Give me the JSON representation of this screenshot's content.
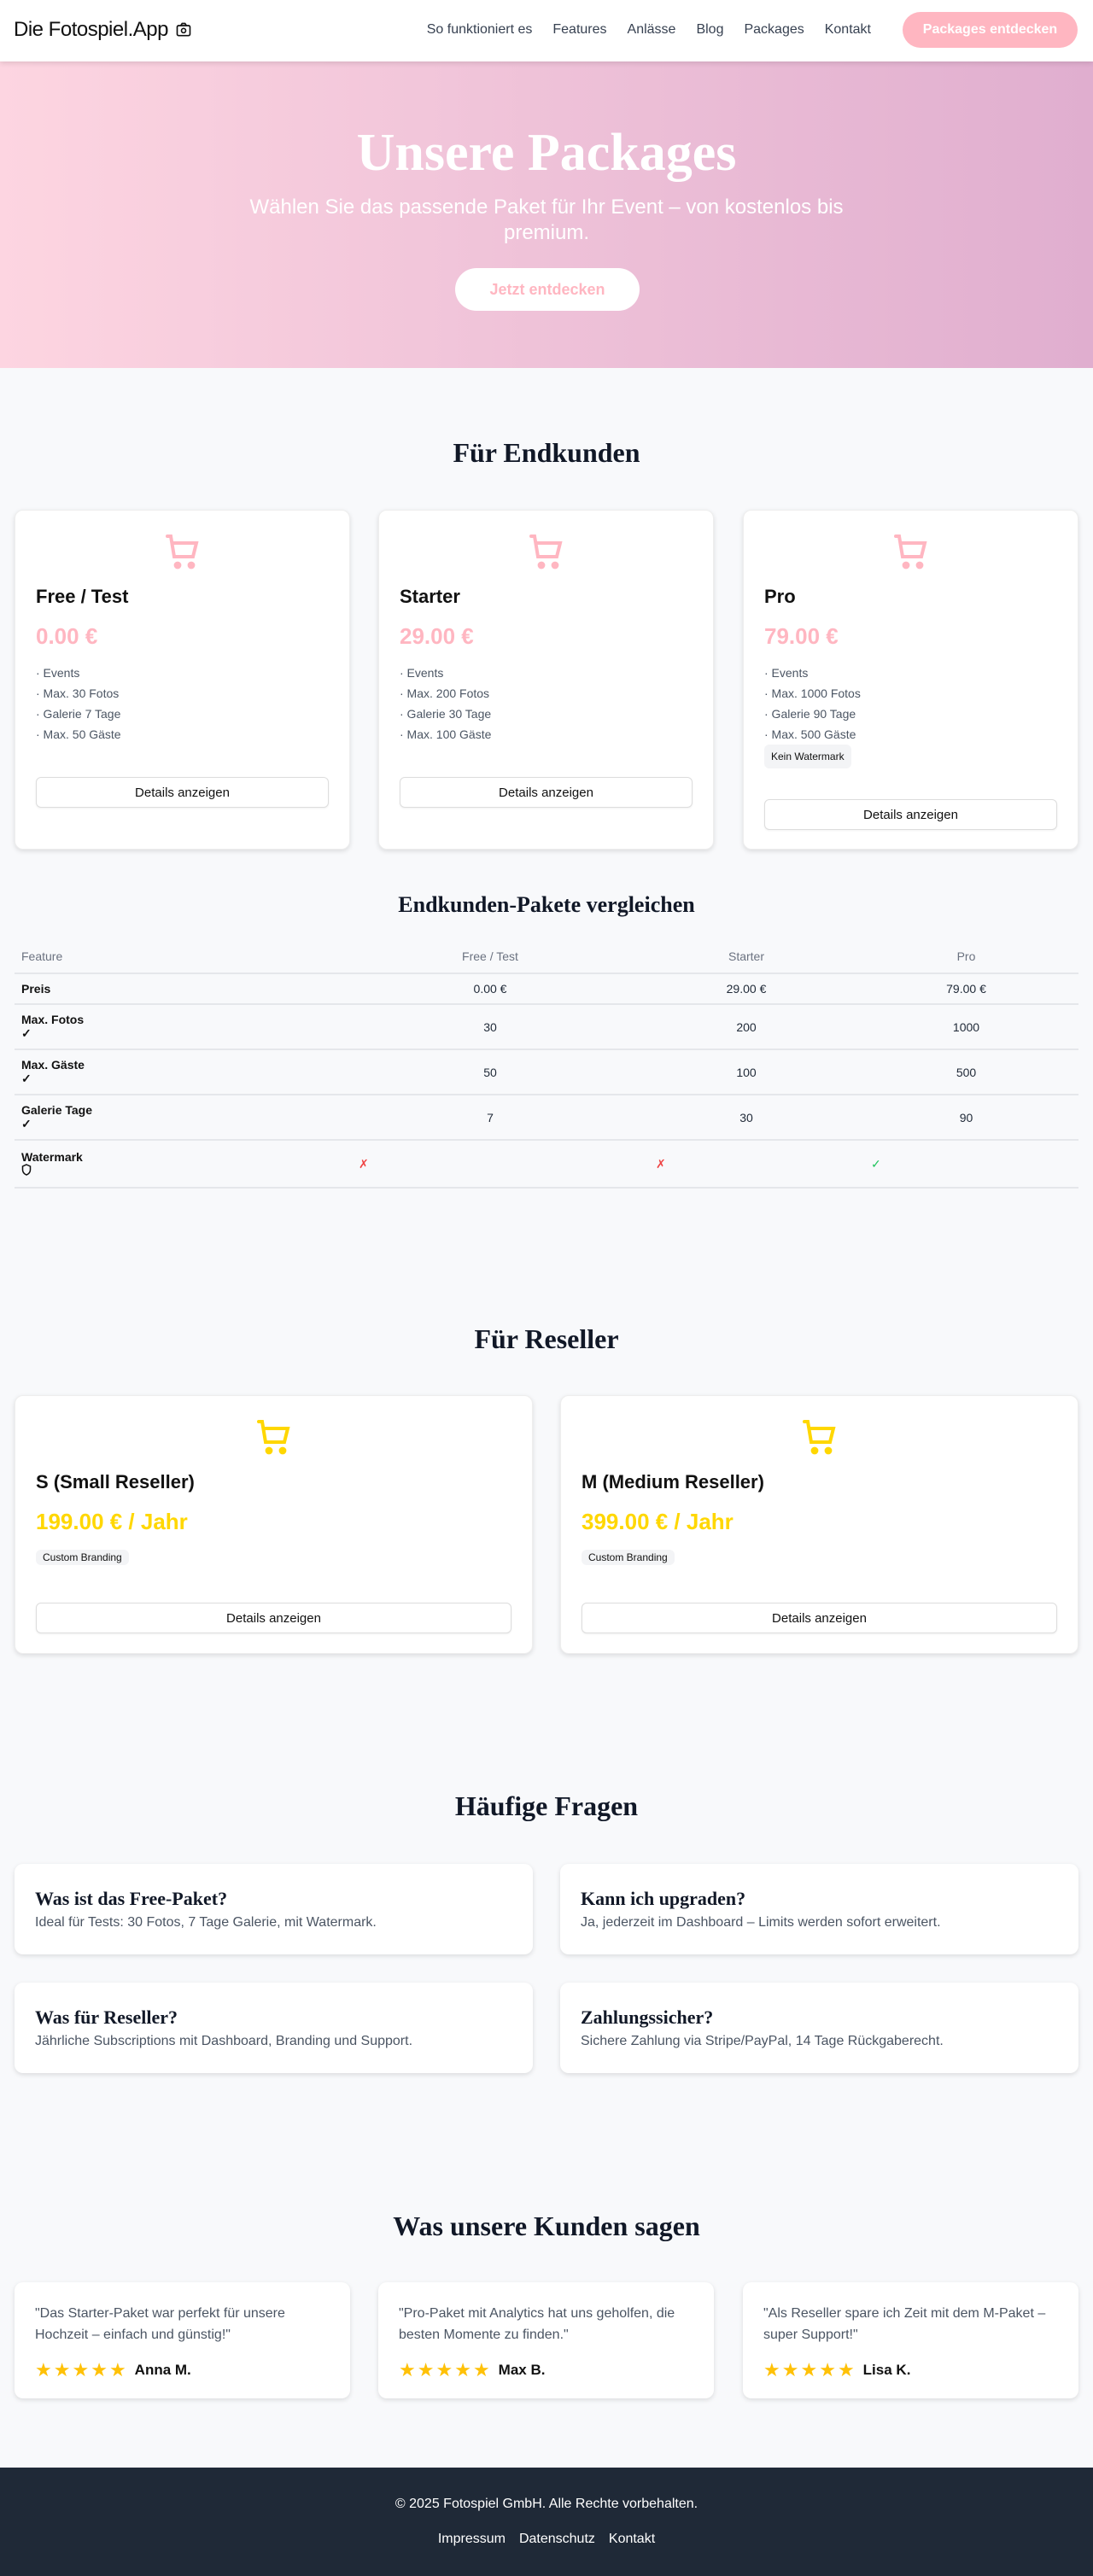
{
  "nav": {
    "logo": "Die Fotospiel.App",
    "links": [
      "So funktioniert es",
      "Features",
      "Anlässe",
      "Blog",
      "Packages",
      "Kontakt"
    ],
    "cta": "Packages entdecken"
  },
  "hero": {
    "title": "Unsere Packages",
    "subtitle": "Wählen Sie das passende Paket für Ihr Event – von kostenlos bis premium.",
    "cta": "Jetzt entdecken"
  },
  "colors": {
    "accent": "#ffb6c1",
    "reseller": "#ffd700",
    "footer": "#1f2937"
  },
  "endkunden": {
    "title": "Für Endkunden",
    "details_label": "Details anzeigen",
    "packages": [
      {
        "name": "Free / Test",
        "price": "0.00 €",
        "features": [
          "· Events",
          "· Max. 30 Fotos",
          "· Galerie 7 Tage",
          "· Max. 50 Gäste"
        ],
        "badge": ""
      },
      {
        "name": "Starter",
        "price": "29.00 €",
        "features": [
          "· Events",
          "· Max. 200 Fotos",
          "· Galerie 30 Tage",
          "· Max. 100 Gäste"
        ],
        "badge": ""
      },
      {
        "name": "Pro",
        "price": "79.00 €",
        "features": [
          "· Events",
          "· Max. 1000 Fotos",
          "· Galerie 90 Tage",
          "· Max. 500 Gäste"
        ],
        "badge": "Kein Watermark"
      }
    ]
  },
  "compare": {
    "title": "Endkunden-Pakete vergleichen",
    "headers": [
      "Feature",
      "Free / Test",
      "Starter",
      "Pro"
    ],
    "rows": [
      {
        "label": "Preis",
        "values": [
          "0.00 €",
          "29.00 €",
          "79.00 €"
        ]
      },
      {
        "label": "Max. Fotos",
        "icon": "✓",
        "values": [
          "30",
          "200",
          "1000"
        ]
      },
      {
        "label": "Max. Gäste",
        "icon": "✓",
        "values": [
          "50",
          "100",
          "500"
        ]
      },
      {
        "label": "Galerie Tage",
        "icon": "✓",
        "values": [
          "7",
          "30",
          "90"
        ]
      },
      {
        "label": "Watermark",
        "icon": "shield",
        "values": [
          "✗",
          "✗",
          "✓"
        ]
      }
    ]
  },
  "reseller": {
    "title": "Für Reseller",
    "packages": [
      {
        "name": "S (Small Reseller)",
        "price": "199.00 € / Jahr",
        "badge": "Custom Branding"
      },
      {
        "name": "M (Medium Reseller)",
        "price": "399.00 € / Jahr",
        "badge": "Custom Branding"
      }
    ]
  },
  "faq": {
    "title": "Häufige Fragen",
    "items": [
      {
        "q": "Was ist das Free-Paket?",
        "a": "Ideal für Tests: 30 Fotos, 7 Tage Galerie, mit Watermark."
      },
      {
        "q": "Kann ich upgraden?",
        "a": "Ja, jederzeit im Dashboard – Limits werden sofort erweitert."
      },
      {
        "q": "Was für Reseller?",
        "a": "Jährliche Subscriptions mit Dashboard, Branding und Support."
      },
      {
        "q": "Zahlungssicher?",
        "a": "Sichere Zahlung via Stripe/PayPal, 14 Tage Rückgaberecht."
      }
    ]
  },
  "testimonials": {
    "title": "Was unsere Kunden sagen",
    "items": [
      {
        "quote": "\"Das Starter-Paket war perfekt für unsere Hochzeit – einfach und günstig!\"",
        "name": "Anna M.",
        "rating": 5
      },
      {
        "quote": "\"Pro-Paket mit Analytics hat uns geholfen, die besten Momente zu finden.\"",
        "name": "Max B.",
        "rating": 5
      },
      {
        "quote": "\"Als Reseller spare ich Zeit mit dem M-Paket – super Support!\"",
        "name": "Lisa K.",
        "rating": 5
      }
    ]
  },
  "footer": {
    "copyright": "© 2025 Fotospiel GmbH. Alle Rechte vorbehalten.",
    "links": [
      "Impressum",
      "Datenschutz",
      "Kontakt"
    ]
  }
}
